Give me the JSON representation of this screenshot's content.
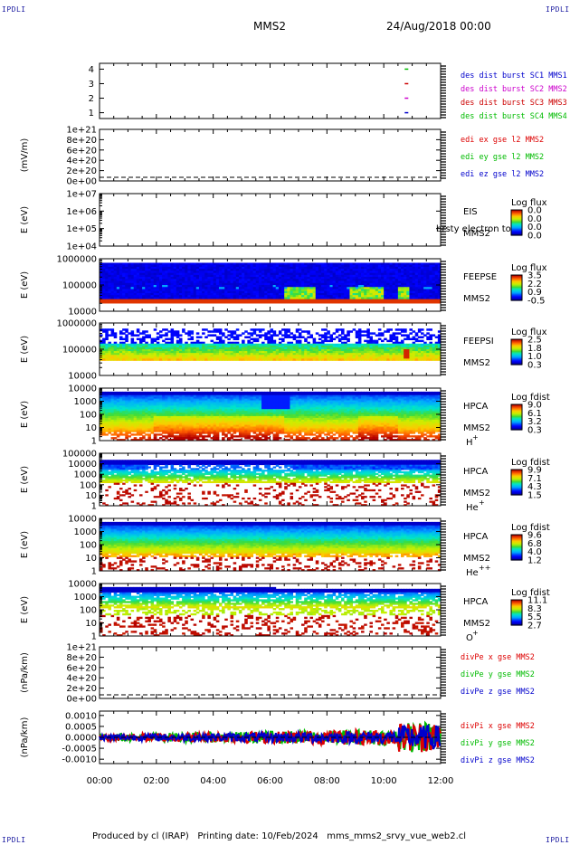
{
  "header": {
    "corner_label": "IPDLI",
    "mission": "MMS2",
    "datetime": "24/Aug/2018 00:00"
  },
  "footer": {
    "produced_by": "Produced by cl (IRAP)",
    "printing_date": "Printing date: 10/Feb/2024",
    "file": "mms_mms2_srvy_vue_web2.cl"
  },
  "colors": {
    "mms1": "#0000cc",
    "mms2": "#cc00cc",
    "mms3": "#cc0000",
    "mms4": "#00bb00",
    "x": "#dd0000",
    "y": "#00bb00",
    "z": "#0000cc"
  },
  "chart_data": [
    {
      "id": "burst",
      "type": "scatter",
      "yticks": [
        "1",
        "2",
        "3",
        "4"
      ],
      "ylim": [
        0.6,
        4.4
      ],
      "xlim": [
        0,
        12
      ],
      "series": [
        {
          "name": "des dist burst SC1 MMS1",
          "color_key": "mms1",
          "x": [
            10.8
          ],
          "y": [
            1
          ]
        },
        {
          "name": "des dist burst SC2 MMS2",
          "color_key": "mms2",
          "x": [
            10.8
          ],
          "y": [
            2
          ]
        },
        {
          "name": "des dist burst SC3 MMS3",
          "color_key": "mms3",
          "x": [
            10.8
          ],
          "y": [
            3
          ]
        },
        {
          "name": "des dist burst SC4 MMS4",
          "color_key": "mms4",
          "x": [
            10.8
          ],
          "y": [
            4
          ]
        }
      ]
    },
    {
      "id": "edi",
      "type": "line",
      "ylabel": "(mV/m)",
      "yticks": [
        "1e+21",
        "8e+20",
        "6e+20",
        "4e+20",
        "2e+20",
        "0e+00"
      ],
      "ylim": [
        0,
        1e+21
      ],
      "xlim": [
        0,
        12
      ],
      "series": [
        {
          "name": "edi ex gse l2 MMS2",
          "color_key": "x"
        },
        {
          "name": "edi ey gse l2 MMS2",
          "color_key": "y"
        },
        {
          "name": "edi ez gse l2 MMS2",
          "color_key": "z"
        }
      ]
    },
    {
      "id": "eis",
      "type": "heatmap",
      "ylabel": "E (eV)",
      "yticks": [
        "1e+07",
        "1e+06",
        "1e+05",
        "1e+04"
      ],
      "instrument": [
        "EIS",
        "MMS2"
      ],
      "overlay_text": "brsty electron to",
      "colorbar": {
        "title": "Log flux",
        "ticks": [
          "0.0",
          "0.0",
          "0.0",
          "0.0"
        ]
      }
    },
    {
      "id": "feepse",
      "type": "heatmap",
      "ylabel": "E (eV)",
      "yticks": [
        "1000000",
        "100000",
        "10000"
      ],
      "instrument": [
        "FEEPSE",
        "MMS2"
      ],
      "colorbar": {
        "title": "Log flux",
        "ticks": [
          "3.5",
          "2.2",
          "0.9",
          "-0.5"
        ]
      }
    },
    {
      "id": "feepsi",
      "type": "heatmap",
      "ylabel": "E (eV)",
      "yticks": [
        "1000000",
        "100000",
        "10000"
      ],
      "instrument": [
        "FEEPSI",
        "MMS2"
      ],
      "colorbar": {
        "title": "Log flux",
        "ticks": [
          "2.5",
          "1.8",
          "1.0",
          "0.3"
        ]
      }
    },
    {
      "id": "hpca_h",
      "type": "heatmap",
      "ylabel": "E (eV)",
      "yticks": [
        "10000",
        "1000",
        "100",
        "10",
        "1"
      ],
      "instrument": [
        "HPCA",
        "MMS2"
      ],
      "species": "H",
      "charge": "+",
      "colorbar": {
        "title": "Log fdist",
        "ticks": [
          "9.0",
          "6.1",
          "3.2",
          "0.3"
        ]
      }
    },
    {
      "id": "hpca_he1",
      "type": "heatmap",
      "ylabel": "E (eV)",
      "yticks": [
        "100000",
        "10000",
        "1000",
        "100",
        "10",
        "1"
      ],
      "instrument": [
        "HPCA",
        "MMS2"
      ],
      "species": "He",
      "charge": "+",
      "colorbar": {
        "title": "Log fdist",
        "ticks": [
          "9.9",
          "7.1",
          "4.3",
          "1.5"
        ]
      }
    },
    {
      "id": "hpca_he2",
      "type": "heatmap",
      "ylabel": "E (eV)",
      "yticks": [
        "10000",
        "1000",
        "100",
        "10",
        "1"
      ],
      "instrument": [
        "HPCA",
        "MMS2"
      ],
      "species": "He",
      "charge": "++",
      "colorbar": {
        "title": "Log fdist",
        "ticks": [
          "9.6",
          "6.8",
          "4.0",
          "1.2"
        ]
      }
    },
    {
      "id": "hpca_o",
      "type": "heatmap",
      "ylabel": "E (eV)",
      "yticks": [
        "10000",
        "1000",
        "100",
        "10",
        "1"
      ],
      "instrument": [
        "HPCA",
        "MMS2"
      ],
      "species": "O",
      "charge": "+",
      "colorbar": {
        "title": "Log fdist",
        "ticks": [
          "11.1",
          "8.3",
          "5.5",
          "2.7"
        ]
      }
    },
    {
      "id": "divpe",
      "type": "line",
      "ylabel": "(nPa/km)",
      "yticks": [
        "1e+21",
        "8e+20",
        "6e+20",
        "4e+20",
        "2e+20",
        "0e+00"
      ],
      "ylim": [
        0,
        1e+21
      ],
      "xlim": [
        0,
        12
      ],
      "series": [
        {
          "name": "divPe x gse MMS2",
          "color_key": "x"
        },
        {
          "name": "divPe y gse MMS2",
          "color_key": "y"
        },
        {
          "name": "divPe z gse MMS2",
          "color_key": "z"
        }
      ]
    },
    {
      "id": "divpi",
      "type": "line",
      "ylabel": "(nPa/km)",
      "yticks": [
        "0.0010",
        "0.0005",
        "0.0000",
        "-0.0005",
        "-0.0010"
      ],
      "ylim": [
        -0.0012,
        0.0012
      ],
      "xlim": [
        0,
        12
      ],
      "series": [
        {
          "name": "divPi x gse MMS2",
          "color_key": "x"
        },
        {
          "name": "divPi y gse MMS2",
          "color_key": "y"
        },
        {
          "name": "divPi z gse MMS2",
          "color_key": "z"
        }
      ]
    }
  ],
  "xaxis": {
    "ticks": [
      "00:00",
      "02:00",
      "04:00",
      "06:00",
      "08:00",
      "10:00",
      "12:00"
    ]
  }
}
